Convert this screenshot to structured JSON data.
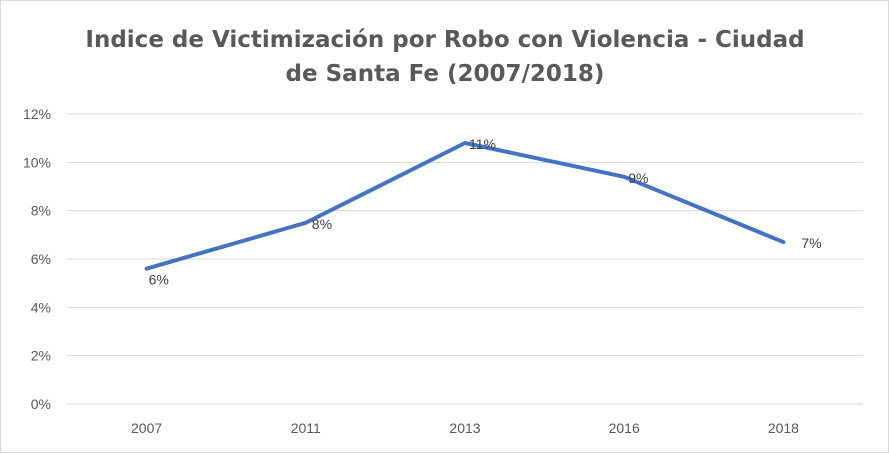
{
  "chart_data": {
    "type": "line",
    "title_lines": [
      "Indice de Victimización por Robo con Violencia - Ciudad",
      "de Santa Fe (2007/2018)"
    ],
    "categories": [
      "2007",
      "2011",
      "2013",
      "2016",
      "2018"
    ],
    "series": [
      {
        "values": [
          5.6,
          7.5,
          10.8,
          9.4,
          6.7
        ],
        "labels": [
          "6%",
          "8%",
          "11%",
          "9%",
          "7%"
        ],
        "color": "#4472c4"
      }
    ],
    "y_ticks": [
      "0%",
      "2%",
      "4%",
      "6%",
      "8%",
      "10%",
      "12%"
    ],
    "ylim": [
      0,
      12
    ],
    "y_unit": "%",
    "grid": true,
    "gridline_color": "#d9d9d9"
  }
}
